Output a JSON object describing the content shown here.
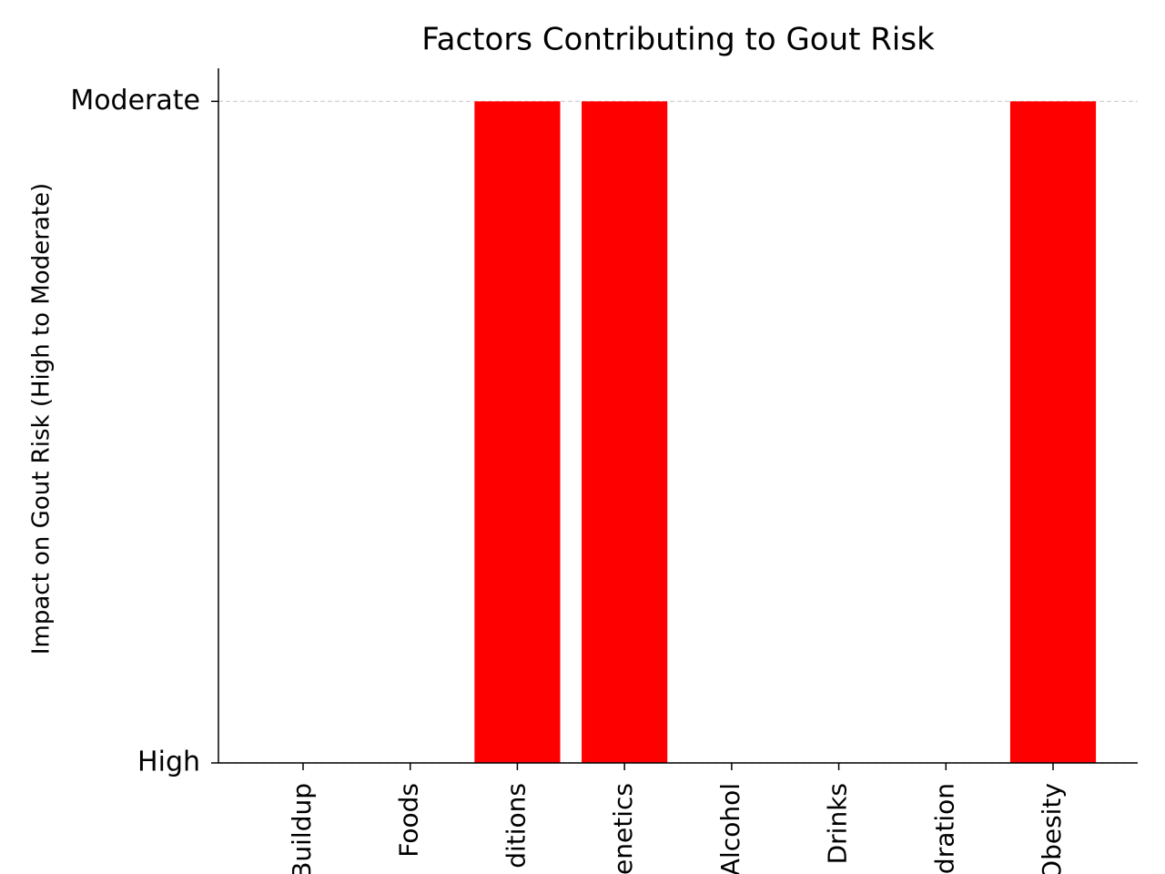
{
  "chart_data": {
    "type": "bar",
    "title": "Factors Contributing to Gout Risk",
    "y_label": "Impact on Gout Risk (High to Moderate)",
    "categories": [
      "Buildup",
      "Foods",
      "ditions",
      "enetics",
      "Alcohol",
      "Drinks",
      "dration",
      "Obesity"
    ],
    "values": [
      0,
      0,
      1,
      1,
      0,
      0,
      0,
      1
    ],
    "color": "#ff0000",
    "ylim": [
      0,
      1.05
    ],
    "yticks": [
      {
        "value": 0,
        "label": "High"
      },
      {
        "value": 1,
        "label": "Moderate"
      }
    ],
    "grid": true
  }
}
